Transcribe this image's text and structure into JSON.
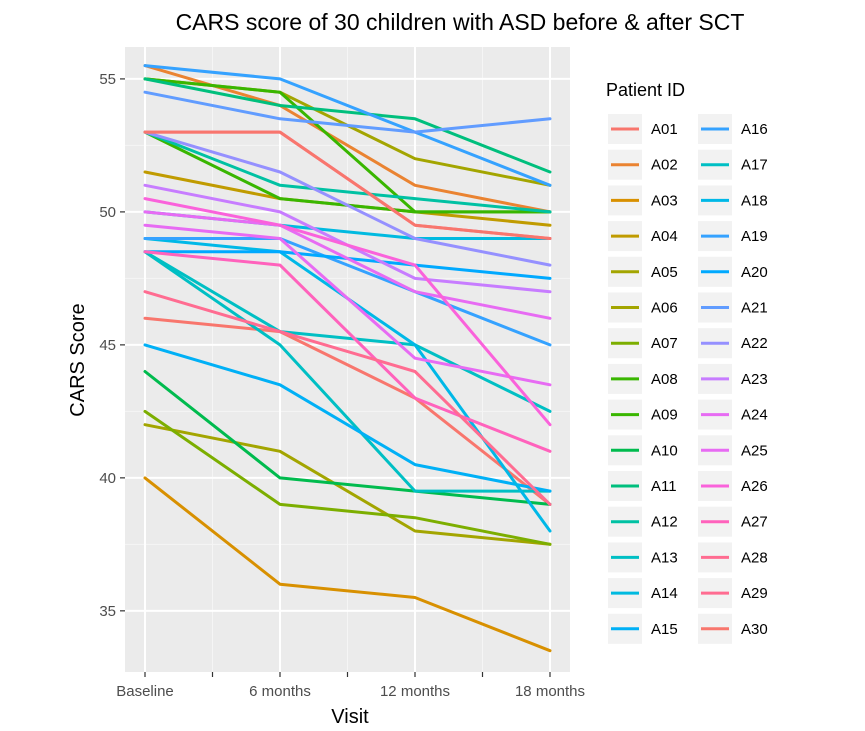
{
  "chart_data": {
    "type": "line",
    "title": "CARS score of 30 children with ASD before & after SCT",
    "xlabel": "Visit",
    "ylabel": "CARS Score",
    "categories": [
      "Baseline",
      "6 months",
      "12 months",
      "18 months"
    ],
    "ylim": [
      32.7,
      56.2
    ],
    "yticks": [
      35,
      40,
      45,
      50,
      55
    ],
    "grid": true,
    "legend_title": "Patient ID",
    "legend_position": "right",
    "series": [
      {
        "name": "A01",
        "color": "#F8766D",
        "values": [
          46,
          45.5,
          43,
          39
        ]
      },
      {
        "name": "A02",
        "color": "#EA8331",
        "values": [
          55.5,
          54,
          51,
          50
        ]
      },
      {
        "name": "A03",
        "color": "#D89000",
        "values": [
          40,
          36,
          35.5,
          33.5
        ]
      },
      {
        "name": "A04",
        "color": "#C09B00",
        "values": [
          51.5,
          50.5,
          50,
          49.5
        ]
      },
      {
        "name": "A05",
        "color": "#A3A500",
        "values": [
          42,
          41,
          38,
          37.5
        ]
      },
      {
        "name": "A06",
        "color": "#A3A500",
        "values": [
          55,
          54.5,
          52,
          51
        ]
      },
      {
        "name": "A07",
        "color": "#7CAE00",
        "values": [
          42.5,
          39,
          38.5,
          37.5
        ]
      },
      {
        "name": "A08",
        "color": "#39B600",
        "values": [
          53,
          50.5,
          50,
          50
        ]
      },
      {
        "name": "A09",
        "color": "#39B600",
        "values": [
          55,
          54.5,
          50,
          50
        ]
      },
      {
        "name": "A10",
        "color": "#00BB4E",
        "values": [
          44,
          40,
          39.5,
          39
        ]
      },
      {
        "name": "A11",
        "color": "#00BF7D",
        "values": [
          55,
          54,
          53.5,
          51.5
        ]
      },
      {
        "name": "A12",
        "color": "#00C1A3",
        "values": [
          53,
          51,
          50.5,
          50
        ]
      },
      {
        "name": "A13",
        "color": "#00BFC4",
        "values": [
          48.5,
          45,
          39.5,
          39.5
        ]
      },
      {
        "name": "A14",
        "color": "#00BAE0",
        "values": [
          50,
          49.5,
          49,
          49
        ]
      },
      {
        "name": "A15",
        "color": "#00B0F6",
        "values": [
          45,
          43.5,
          40.5,
          39.5
        ]
      },
      {
        "name": "A16",
        "color": "#35A2FF",
        "values": [
          55.5,
          55,
          53,
          51
        ]
      },
      {
        "name": "A17",
        "color": "#00BFC4",
        "values": [
          48.5,
          45.5,
          45,
          42.5
        ]
      },
      {
        "name": "A18",
        "color": "#00B8E7",
        "values": [
          49,
          48.5,
          45,
          38
        ]
      },
      {
        "name": "A19",
        "color": "#35A2FF",
        "values": [
          49,
          49,
          47,
          45
        ]
      },
      {
        "name": "A20",
        "color": "#00A9FF",
        "values": [
          48.5,
          48.5,
          48,
          47.5
        ]
      },
      {
        "name": "A21",
        "color": "#619CFF",
        "values": [
          54.5,
          53.5,
          53,
          53.5
        ]
      },
      {
        "name": "A22",
        "color": "#9590FF",
        "values": [
          53,
          51.5,
          49,
          48
        ]
      },
      {
        "name": "A23",
        "color": "#C77CFF",
        "values": [
          51,
          50,
          47.5,
          47
        ]
      },
      {
        "name": "A24",
        "color": "#E76BF3",
        "values": [
          50,
          49.5,
          47,
          46
        ]
      },
      {
        "name": "A25",
        "color": "#E76BF3",
        "values": [
          49.5,
          49,
          44.5,
          43.5
        ]
      },
      {
        "name": "A26",
        "color": "#FA62DB",
        "values": [
          50.5,
          49.5,
          48,
          42
        ]
      },
      {
        "name": "A27",
        "color": "#FF62BC",
        "values": [
          48.5,
          48,
          43,
          41
        ]
      },
      {
        "name": "A28",
        "color": "#FF6C91",
        "values": [
          47,
          45.5,
          44,
          39
        ]
      },
      {
        "name": "A29",
        "color": "#FF6C91",
        "values": [
          53,
          53,
          49.5,
          49
        ]
      },
      {
        "name": "A30",
        "color": "#F8766D",
        "values": [
          53,
          53,
          49.5,
          49
        ]
      }
    ]
  }
}
